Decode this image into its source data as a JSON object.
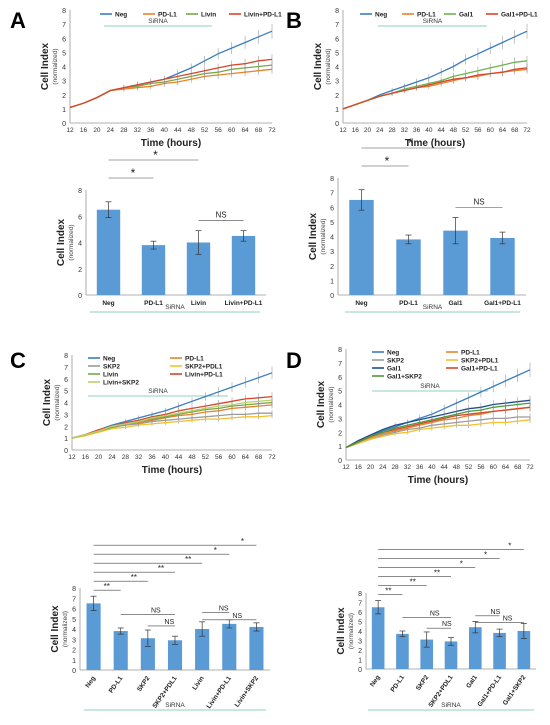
{
  "panel_labels": [
    "A",
    "B",
    "C",
    "D"
  ],
  "colors": {
    "Neg": "#3a7dbf",
    "PD-L1": "#e8832a",
    "Livin": "#7aa64a",
    "Livin+PD-L1": "#d9452b",
    "Gal1": "#6bb54e",
    "Gal1+PD-L1": "#d9452b",
    "SKP2": "#9c9c9c",
    "SKP2+PDL1": "#f2c12e",
    "Livin+SKP2": "#b6d36a",
    "Gal1+SKP2": "#4e9a3a",
    "Gal1_D": "#1f4f91",
    "bar": "#5b9bd5",
    "siRNA_line": "#8fd0c0"
  },
  "chart_data": [
    {
      "id": "A_line",
      "type": "line",
      "panel": "A",
      "ylabel": "Cell Index",
      "ylabel_sub": "(normalized)",
      "xlabel": "Time (hours)",
      "annotation": "SiRNA",
      "x": [
        12,
        16,
        20,
        24,
        28,
        32,
        36,
        40,
        44,
        48,
        52,
        56,
        60,
        64,
        68,
        72
      ],
      "xticks": [
        "12",
        "16",
        "20",
        "24",
        "28",
        "32",
        "36",
        "40",
        "44",
        "48",
        "52",
        "56",
        "60",
        "64",
        "68",
        "72"
      ],
      "xlim": [
        12,
        72
      ],
      "ylim": [
        0,
        8
      ],
      "yticks": [
        "0",
        "1",
        "2",
        "3",
        "4",
        "5",
        "6",
        "7",
        "8"
      ],
      "series": [
        {
          "name": "Neg",
          "values": [
            1.1,
            1.4,
            1.8,
            2.3,
            2.5,
            2.7,
            2.9,
            3.1,
            3.5,
            3.9,
            4.4,
            4.9,
            5.3,
            5.7,
            6.1,
            6.5
          ]
        },
        {
          "name": "PD-L1",
          "values": [
            1.1,
            1.4,
            1.8,
            2.3,
            2.4,
            2.5,
            2.6,
            2.8,
            2.9,
            3.1,
            3.3,
            3.4,
            3.5,
            3.6,
            3.7,
            3.8
          ]
        },
        {
          "name": "Livin",
          "values": [
            1.1,
            1.4,
            1.8,
            2.3,
            2.5,
            2.6,
            2.8,
            2.9,
            3.1,
            3.3,
            3.5,
            3.6,
            3.8,
            3.9,
            4.0,
            4.1
          ]
        },
        {
          "name": "Livin+PD-L1",
          "values": [
            1.1,
            1.4,
            1.8,
            2.3,
            2.5,
            2.7,
            2.9,
            3.1,
            3.3,
            3.5,
            3.7,
            3.9,
            4.1,
            4.2,
            4.4,
            4.5
          ]
        }
      ]
    },
    {
      "id": "A_bar",
      "type": "bar",
      "panel": "A",
      "ylabel": "Cell Index",
      "ylabel_sub": "(normalized)",
      "annotation": "SiRNA",
      "categories": [
        "Neg",
        "PD-L1",
        "Livin",
        "Livin+PD-L1"
      ],
      "values": [
        6.5,
        3.8,
        4.0,
        4.5
      ],
      "errors": [
        0.6,
        0.3,
        0.9,
        0.4
      ],
      "ylim": [
        0,
        8
      ],
      "yticks": [
        "0",
        "2",
        "4",
        "6",
        "8"
      ],
      "significance": [
        {
          "from": 0,
          "to": 1,
          "label": "*"
        },
        {
          "from": 0,
          "to": 2,
          "label": "*"
        },
        {
          "from": 2,
          "to": 3,
          "label": "NS"
        }
      ]
    },
    {
      "id": "B_line",
      "type": "line",
      "panel": "B",
      "ylabel": "Cell Index",
      "ylabel_sub": "(normalized)",
      "xlabel": "Time (hours)",
      "annotation": "SiRNA",
      "x": [
        12,
        16,
        20,
        24,
        28,
        32,
        36,
        40,
        44,
        48,
        52,
        56,
        60,
        64,
        68,
        72
      ],
      "xticks": [
        "12",
        "16",
        "20",
        "24",
        "28",
        "32",
        "36",
        "40",
        "44",
        "48",
        "52",
        "56",
        "60",
        "64",
        "68",
        "72"
      ],
      "xlim": [
        12,
        72
      ],
      "ylim": [
        0,
        8
      ],
      "yticks": [
        "0",
        "1",
        "2",
        "3",
        "4",
        "5",
        "6",
        "7",
        "8"
      ],
      "series": [
        {
          "name": "Neg",
          "values": [
            1.0,
            1.3,
            1.6,
            2.0,
            2.3,
            2.6,
            2.9,
            3.2,
            3.6,
            4.0,
            4.5,
            4.9,
            5.3,
            5.7,
            6.1,
            6.5
          ]
        },
        {
          "name": "PD-L1",
          "values": [
            1.0,
            1.3,
            1.6,
            1.9,
            2.1,
            2.3,
            2.5,
            2.6,
            2.8,
            3.0,
            3.2,
            3.3,
            3.5,
            3.6,
            3.7,
            3.8
          ]
        },
        {
          "name": "Gal1",
          "values": [
            1.0,
            1.3,
            1.6,
            1.9,
            2.1,
            2.4,
            2.6,
            2.8,
            3.0,
            3.3,
            3.5,
            3.7,
            3.9,
            4.1,
            4.3,
            4.4
          ]
        },
        {
          "name": "Gal1+PD-L1",
          "values": [
            1.0,
            1.3,
            1.6,
            1.9,
            2.1,
            2.3,
            2.5,
            2.7,
            2.9,
            3.1,
            3.2,
            3.4,
            3.5,
            3.6,
            3.8,
            3.9
          ]
        }
      ]
    },
    {
      "id": "B_bar",
      "type": "bar",
      "panel": "B",
      "ylabel": "Cell Index",
      "ylabel_sub": "(normalized)",
      "annotation": "SiRNA",
      "categories": [
        "Neg",
        "PD-L1",
        "Gal1",
        "Gal1+PD-L1"
      ],
      "values": [
        6.5,
        3.8,
        4.4,
        3.9
      ],
      "errors": [
        0.7,
        0.3,
        0.9,
        0.4
      ],
      "ylim": [
        0,
        8
      ],
      "yticks": [
        "0",
        "1",
        "2",
        "3",
        "4",
        "5",
        "6",
        "7",
        "8"
      ],
      "significance": [
        {
          "from": 0,
          "to": 1,
          "label": "*"
        },
        {
          "from": 0,
          "to": 2,
          "label": "*"
        },
        {
          "from": 2,
          "to": 3,
          "label": "NS"
        }
      ]
    },
    {
      "id": "C_line",
      "type": "line",
      "panel": "C",
      "ylabel": "Cell Index",
      "ylabel_sub": "(normalized)",
      "xlabel": "Time (hours)",
      "annotation": "SiRNA",
      "x": [
        12,
        16,
        20,
        24,
        28,
        32,
        36,
        40,
        44,
        48,
        52,
        56,
        60,
        64,
        68,
        72
      ],
      "xticks": [
        "12",
        "16",
        "20",
        "24",
        "28",
        "32",
        "36",
        "40",
        "44",
        "48",
        "52",
        "56",
        "60",
        "64",
        "68",
        "72"
      ],
      "xlim": [
        12,
        72
      ],
      "ylim": [
        0,
        8
      ],
      "yticks": [
        "0",
        "1",
        "2",
        "3",
        "4",
        "5",
        "6",
        "7",
        "8"
      ],
      "series": [
        {
          "name": "Neg",
          "values": [
            1.0,
            1.3,
            1.7,
            2.1,
            2.4,
            2.7,
            3.0,
            3.3,
            3.7,
            4.1,
            4.5,
            4.9,
            5.3,
            5.7,
            6.1,
            6.5
          ]
        },
        {
          "name": "PD-L1",
          "values": [
            1.0,
            1.3,
            1.6,
            1.9,
            2.1,
            2.3,
            2.5,
            2.7,
            2.9,
            3.0,
            3.2,
            3.3,
            3.5,
            3.6,
            3.7,
            3.8
          ]
        },
        {
          "name": "SKP2",
          "values": [
            1.0,
            1.3,
            1.6,
            1.9,
            2.1,
            2.2,
            2.4,
            2.5,
            2.6,
            2.7,
            2.8,
            2.9,
            3.0,
            3.0,
            3.1,
            3.1
          ]
        },
        {
          "name": "SKP2+PDL1",
          "values": [
            1.0,
            1.2,
            1.5,
            1.8,
            1.9,
            2.1,
            2.2,
            2.3,
            2.4,
            2.5,
            2.6,
            2.6,
            2.7,
            2.8,
            2.8,
            2.9
          ]
        },
        {
          "name": "Livin",
          "values": [
            1.0,
            1.3,
            1.6,
            1.9,
            2.2,
            2.4,
            2.6,
            2.8,
            3.0,
            3.2,
            3.4,
            3.5,
            3.7,
            3.8,
            3.9,
            4.0
          ]
        },
        {
          "name": "Livin+PD-L1",
          "values": [
            1.0,
            1.3,
            1.7,
            2.0,
            2.3,
            2.5,
            2.8,
            3.0,
            3.3,
            3.5,
            3.7,
            3.9,
            4.1,
            4.3,
            4.4,
            4.5
          ]
        },
        {
          "name": "Livin+SKP2",
          "values": [
            1.0,
            1.3,
            1.6,
            2.0,
            2.2,
            2.4,
            2.7,
            2.9,
            3.1,
            3.3,
            3.5,
            3.7,
            3.8,
            4.0,
            4.1,
            4.2
          ]
        }
      ]
    },
    {
      "id": "C_bar",
      "type": "bar",
      "panel": "C",
      "ylabel": "Cell Index",
      "ylabel_sub": "(normalized)",
      "annotation": "SiRNA",
      "categories": [
        "Neg",
        "PD-L1",
        "SKP2",
        "SKP2+PDL1",
        "Livin",
        "Livin+PD-L1",
        "Livin+SKP2"
      ],
      "values": [
        6.5,
        3.8,
        3.1,
        2.9,
        4.0,
        4.5,
        4.2
      ],
      "errors": [
        0.7,
        0.3,
        0.8,
        0.4,
        0.7,
        0.4,
        0.4
      ],
      "ylim": [
        0,
        8
      ],
      "yticks": [
        "0",
        "1",
        "2",
        "3",
        "4",
        "5",
        "6",
        "7",
        "8"
      ],
      "significance": [
        {
          "from": 0,
          "to": 1,
          "label": "**"
        },
        {
          "from": 0,
          "to": 2,
          "label": "**"
        },
        {
          "from": 0,
          "to": 3,
          "label": "**"
        },
        {
          "from": 0,
          "to": 4,
          "label": "**"
        },
        {
          "from": 0,
          "to": 5,
          "label": "*"
        },
        {
          "from": 0,
          "to": 6,
          "label": "*"
        },
        {
          "from": 1,
          "to": 3,
          "label": "NS"
        },
        {
          "from": 2,
          "to": 3,
          "label": "NS"
        },
        {
          "from": 4,
          "to": 5,
          "label": "NS"
        },
        {
          "from": 4,
          "to": 6,
          "label": "NS"
        }
      ]
    },
    {
      "id": "D_line",
      "type": "line",
      "panel": "D",
      "ylabel": "Cell Index",
      "ylabel_sub": "(normalized)",
      "xlabel": "Time (hours)",
      "annotation": "SiRNA",
      "x": [
        12,
        16,
        20,
        24,
        28,
        32,
        36,
        40,
        44,
        48,
        52,
        56,
        60,
        64,
        68,
        72
      ],
      "xticks": [
        "12",
        "16",
        "20",
        "24",
        "28",
        "32",
        "36",
        "40",
        "44",
        "48",
        "52",
        "56",
        "60",
        "64",
        "68",
        "72"
      ],
      "xlim": [
        12,
        72
      ],
      "ylim": [
        0,
        8
      ],
      "yticks": [
        "0",
        "1",
        "2",
        "3",
        "4",
        "5",
        "6",
        "7",
        "8"
      ],
      "series": [
        {
          "name": "Neg",
          "values": [
            0.9,
            1.3,
            1.7,
            2.1,
            2.4,
            2.7,
            3.0,
            3.3,
            3.7,
            4.1,
            4.5,
            4.9,
            5.3,
            5.7,
            6.1,
            6.5
          ]
        },
        {
          "name": "PD-L1",
          "values": [
            0.9,
            1.3,
            1.6,
            1.9,
            2.1,
            2.3,
            2.5,
            2.7,
            2.9,
            3.0,
            3.2,
            3.3,
            3.5,
            3.6,
            3.7,
            3.8
          ]
        },
        {
          "name": "SKP2",
          "values": [
            0.9,
            1.2,
            1.5,
            1.8,
            2.0,
            2.2,
            2.3,
            2.5,
            2.6,
            2.7,
            2.8,
            2.9,
            3.0,
            3.0,
            3.1,
            3.1
          ]
        },
        {
          "name": "SKP2+PDL1",
          "values": [
            0.9,
            1.2,
            1.5,
            1.7,
            1.9,
            2.0,
            2.2,
            2.3,
            2.4,
            2.5,
            2.5,
            2.6,
            2.7,
            2.7,
            2.8,
            2.9
          ]
        },
        {
          "name": "Gal1",
          "values": [
            0.9,
            1.4,
            1.8,
            2.2,
            2.5,
            2.7,
            2.9,
            3.1,
            3.3,
            3.5,
            3.7,
            3.8,
            4.0,
            4.1,
            4.2,
            4.3
          ]
        },
        {
          "name": "Gal1+PD-L1",
          "values": [
            0.9,
            1.3,
            1.7,
            2.0,
            2.2,
            2.4,
            2.6,
            2.8,
            3.0,
            3.2,
            3.3,
            3.4,
            3.5,
            3.6,
            3.7,
            3.8
          ]
        },
        {
          "name": "Gal1+SKP2",
          "values": [
            0.9,
            1.3,
            1.7,
            2.0,
            2.3,
            2.5,
            2.7,
            2.9,
            3.1,
            3.3,
            3.5,
            3.6,
            3.8,
            3.9,
            4.0,
            4.1
          ]
        }
      ]
    },
    {
      "id": "D_bar",
      "type": "bar",
      "panel": "D",
      "ylabel": "Cell Index",
      "ylabel_sub": "(normalized)",
      "annotation": "SiRNA",
      "categories": [
        "Neg",
        "PD-L1",
        "SKP2",
        "SKP2+PDL1",
        "Gal1",
        "Gal1+PD-L1",
        "Gal1+SKP2"
      ],
      "values": [
        6.5,
        3.7,
        3.1,
        2.9,
        4.4,
        3.8,
        4.0
      ],
      "errors": [
        0.7,
        0.3,
        0.8,
        0.4,
        0.6,
        0.4,
        0.8
      ],
      "ylim": [
        0,
        8
      ],
      "yticks": [
        "0",
        "1",
        "2",
        "3",
        "4",
        "5",
        "6",
        "7",
        "8"
      ],
      "significance": [
        {
          "from": 0,
          "to": 1,
          "label": "**"
        },
        {
          "from": 0,
          "to": 2,
          "label": "**"
        },
        {
          "from": 0,
          "to": 3,
          "label": "**"
        },
        {
          "from": 0,
          "to": 4,
          "label": "*"
        },
        {
          "from": 0,
          "to": 5,
          "label": "*"
        },
        {
          "from": 0,
          "to": 6,
          "label": "*"
        },
        {
          "from": 1,
          "to": 3,
          "label": "NS"
        },
        {
          "from": 2,
          "to": 3,
          "label": "NS"
        },
        {
          "from": 4,
          "to": 5,
          "label": "NS"
        },
        {
          "from": 4,
          "to": 6,
          "label": "NS"
        }
      ]
    }
  ]
}
